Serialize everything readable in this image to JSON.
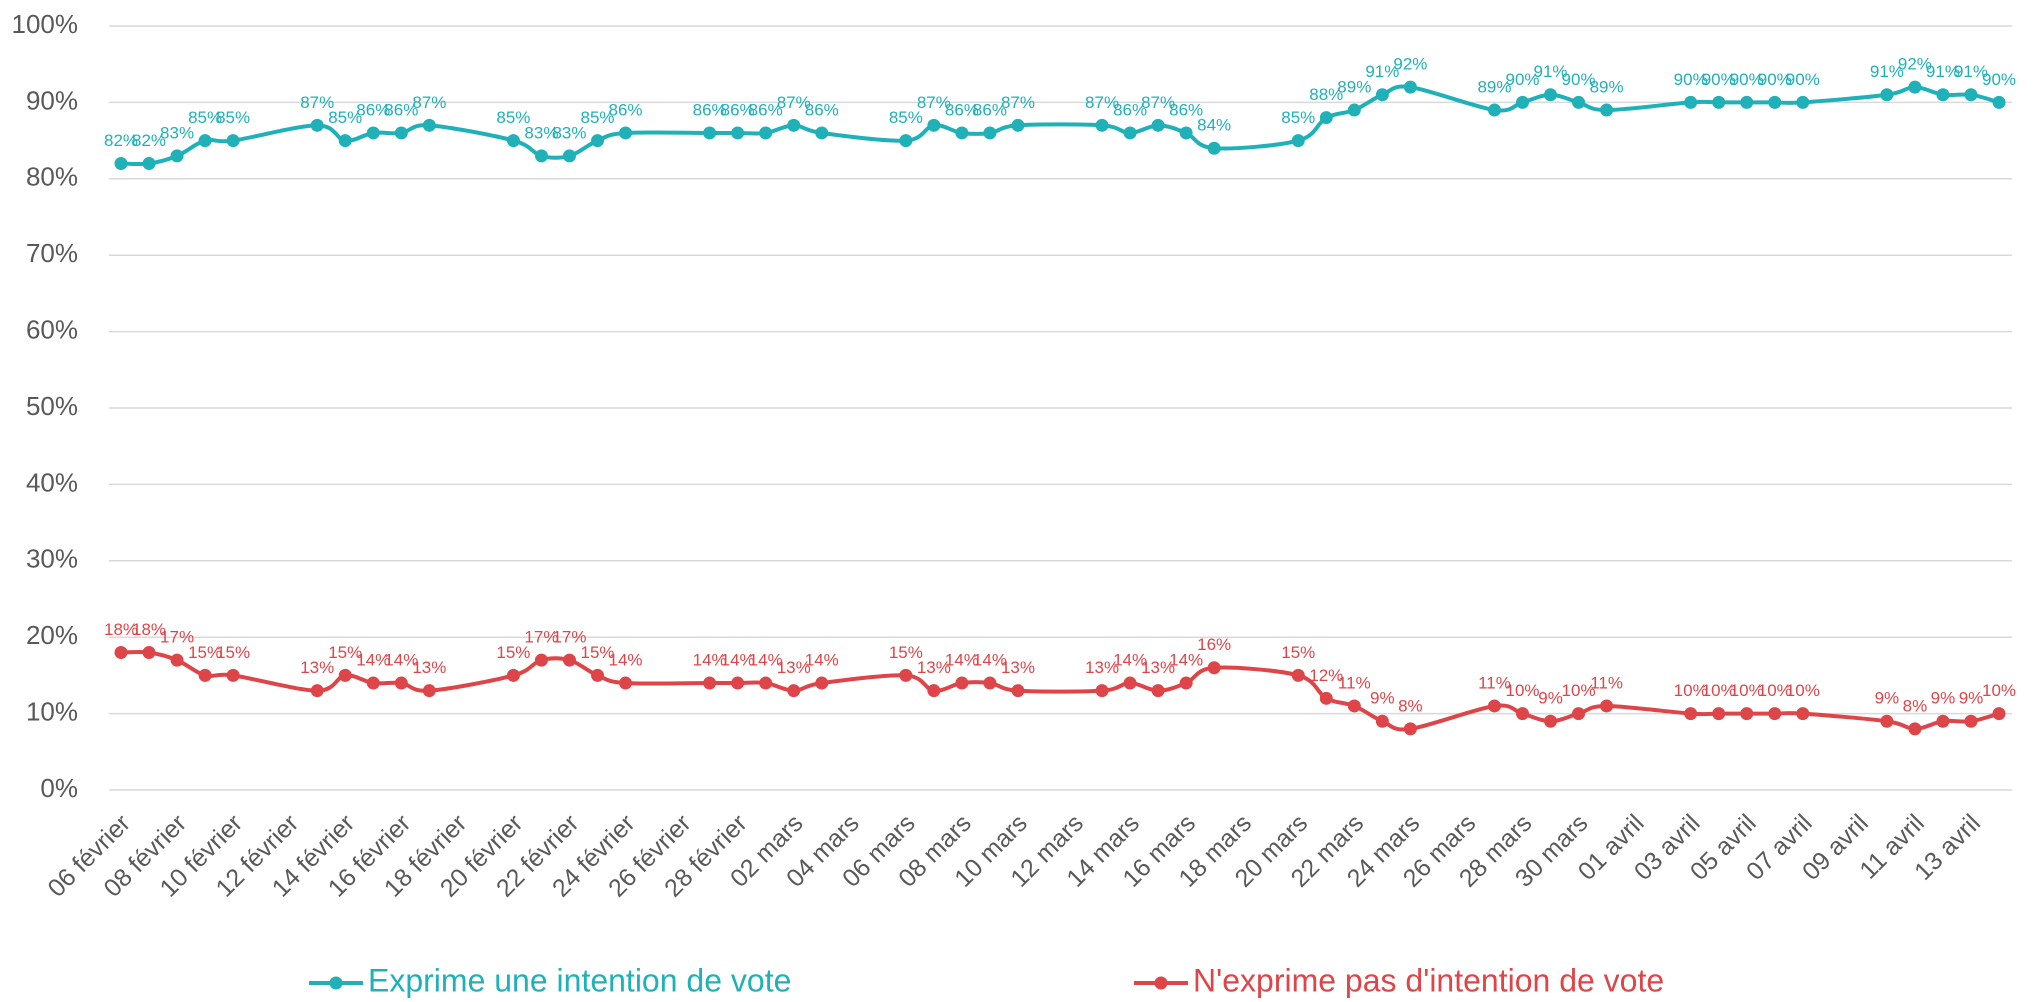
{
  "chart_data": {
    "type": "line",
    "categories": [
      "06 février",
      null,
      "08 février",
      null,
      "10 février",
      null,
      "12 février",
      null,
      "14 février",
      null,
      "16 février",
      null,
      "18 février",
      null,
      "20 février",
      null,
      "22 février",
      null,
      "24 février",
      null,
      "26 février",
      null,
      "28 février",
      null,
      "02 mars",
      null,
      "04 mars",
      null,
      "06 mars",
      null,
      "08 mars",
      null,
      "10 mars",
      null,
      "12 mars",
      null,
      "14 mars",
      null,
      "16 mars",
      null,
      "18 mars",
      null,
      "20 mars",
      null,
      "22 mars",
      null,
      "24 mars",
      null,
      "26 mars",
      null,
      "28 mars",
      null,
      "30 mars",
      null,
      "01 avril",
      null,
      "03 avril",
      null,
      "05 avril",
      null,
      "07 avril",
      null,
      "09 avril",
      null,
      "11 avril",
      null,
      "13 avril",
      null
    ],
    "series": [
      {
        "name": "Exprime une intention de vote",
        "color": "#1fb1b7",
        "values": [
          82,
          82,
          83,
          85,
          85,
          null,
          null,
          87,
          85,
          86,
          86,
          87,
          null,
          null,
          85,
          83,
          83,
          85,
          86,
          null,
          null,
          86,
          86,
          86,
          87,
          86,
          null,
          null,
          85,
          87,
          86,
          86,
          87,
          null,
          null,
          87,
          86,
          87,
          86,
          84,
          null,
          null,
          85,
          88,
          89,
          91,
          92,
          null,
          null,
          89,
          90,
          91,
          90,
          89,
          null,
          null,
          90,
          90,
          90,
          90,
          90,
          null,
          null,
          91,
          92,
          91,
          91,
          90
        ],
        "value_labels": [
          "82%",
          "82%",
          "83%",
          "85%",
          "85%",
          null,
          null,
          "87%",
          "85%",
          "86%",
          "86%",
          "87%",
          null,
          null,
          "85%",
          "83%",
          "83%",
          "85%",
          "86%",
          null,
          null,
          "86%",
          "86%",
          "86%",
          "87%",
          "86%",
          null,
          null,
          "85%",
          "87%",
          "86%",
          "86%",
          "87%",
          null,
          null,
          "87%",
          "86%",
          "87%",
          "86%",
          "84%",
          null,
          null,
          "85%",
          "88%",
          "89%",
          "91%",
          "92%",
          null,
          null,
          "89%",
          "90%",
          "91%",
          "90%",
          "89%",
          null,
          null,
          "90%",
          "90%",
          "90%",
          "90%",
          "90%",
          null,
          null,
          "91%",
          "92%",
          "91%",
          "91%",
          "90%"
        ]
      },
      {
        "name": "N'exprime pas d'intention de vote",
        "color": "#de4549",
        "values": [
          18,
          18,
          17,
          15,
          15,
          null,
          null,
          13,
          15,
          14,
          14,
          13,
          null,
          null,
          15,
          17,
          17,
          15,
          14,
          null,
          null,
          14,
          14,
          14,
          13,
          14,
          null,
          null,
          15,
          13,
          14,
          14,
          13,
          null,
          null,
          13,
          14,
          13,
          14,
          16,
          null,
          null,
          15,
          12,
          11,
          9,
          8,
          null,
          null,
          11,
          10,
          9,
          10,
          11,
          null,
          null,
          10,
          10,
          10,
          10,
          10,
          null,
          null,
          9,
          8,
          9,
          9,
          10
        ],
        "value_labels": [
          "18%",
          "18%",
          "17%",
          "15%",
          "15%",
          null,
          null,
          "13%",
          "15%",
          "14%",
          "14%",
          "13%",
          null,
          null,
          "15%",
          "17%",
          "17%",
          "15%",
          "14%",
          null,
          null,
          "14%",
          "14%",
          "14%",
          "13%",
          "14%",
          null,
          null,
          "15%",
          "13%",
          "14%",
          "14%",
          "13%",
          null,
          null,
          "13%",
          "14%",
          "13%",
          "14%",
          "16%",
          null,
          null,
          "15%",
          "12%",
          "11%",
          "9%",
          "8%",
          null,
          null,
          "11%",
          "10%",
          "9%",
          "10%",
          "11%",
          null,
          null,
          "10%",
          "10%",
          "10%",
          "10%",
          "10%",
          null,
          null,
          "9%",
          "8%",
          "9%",
          "9%",
          "10%"
        ]
      }
    ],
    "ylim": [
      0,
      100
    ],
    "yticks": [
      {
        "value": 0,
        "label": "0%"
      },
      {
        "value": 10,
        "label": "10%"
      },
      {
        "value": 20,
        "label": "20%"
      },
      {
        "value": 30,
        "label": "30%"
      },
      {
        "value": 40,
        "label": "40%"
      },
      {
        "value": 50,
        "label": "50%"
      },
      {
        "value": 60,
        "label": "60%"
      },
      {
        "value": 70,
        "label": "70%"
      },
      {
        "value": 80,
        "label": "80%"
      },
      {
        "value": 90,
        "label": "90%"
      },
      {
        "value": 100,
        "label": "100%"
      }
    ],
    "grid": true,
    "legend": "bottom"
  }
}
